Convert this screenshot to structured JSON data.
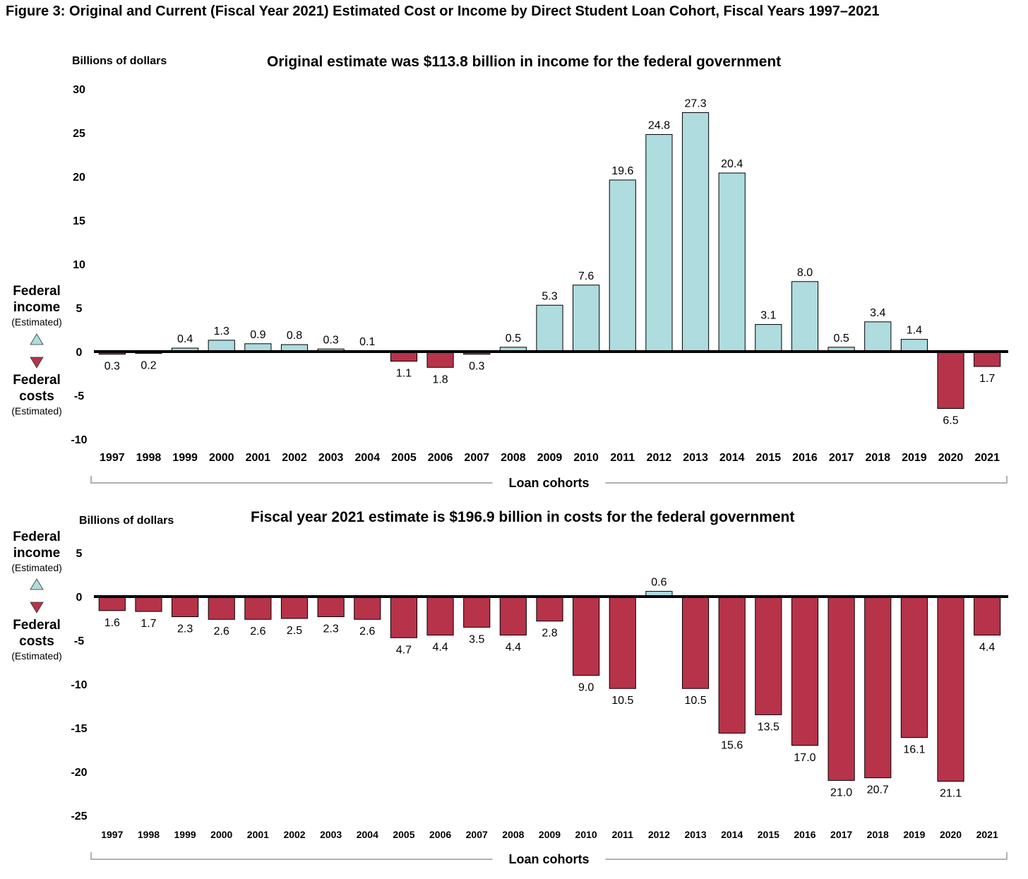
{
  "figure_title": "Figure 3: Original and Current (Fiscal Year 2021) Estimated Cost or Income by Direct Student Loan Cohort, Fiscal Years 1997–2021",
  "legend": {
    "income_label_line1": "Federal",
    "income_label_line2": "income",
    "income_note": "(Estimated)",
    "costs_label_line1": "Federal",
    "costs_label_line2": "costs",
    "costs_note": "(Estimated)",
    "income_color": "#aedcdf",
    "costs_color": "#b7334a",
    "income_icon": "triangle-up-icon",
    "costs_icon": "triangle-down-icon"
  },
  "chart_data": [
    {
      "type": "bar",
      "title": "Original estimate was $113.8 billion in income for the federal government",
      "ylabel": "Billions of dollars",
      "xlabel": "Loan cohorts",
      "ylim": [
        -10,
        30
      ],
      "yticks": [
        30,
        25,
        20,
        15,
        10,
        5,
        0,
        -5,
        -10
      ],
      "grid": false,
      "categories": [
        "1997",
        "1998",
        "1999",
        "2000",
        "2001",
        "2002",
        "2003",
        "2004",
        "2005",
        "2006",
        "2007",
        "2008",
        "2009",
        "2010",
        "2011",
        "2012",
        "2013",
        "2014",
        "2015",
        "2016",
        "2017",
        "2018",
        "2019",
        "2020",
        "2021"
      ],
      "values": [
        -0.3,
        -0.2,
        0.4,
        1.3,
        0.9,
        0.8,
        0.3,
        0.1,
        -1.1,
        -1.8,
        -0.3,
        0.5,
        5.3,
        7.6,
        19.6,
        24.8,
        27.3,
        20.4,
        3.1,
        8.0,
        0.5,
        3.4,
        1.4,
        -6.5,
        -1.7
      ],
      "labels": [
        "0.3",
        "0.2",
        "0.4",
        "1.3",
        "0.9",
        "0.8",
        "0.3",
        "0.1",
        "1.1",
        "1.8",
        "0.3",
        "0.5",
        "5.3",
        "7.6",
        "19.6",
        "24.8",
        "27.3",
        "20.4",
        "3.1",
        "8.0",
        "0.5",
        "3.4",
        "1.4",
        "6.5",
        "1.7"
      ]
    },
    {
      "type": "bar",
      "title": "Fiscal year 2021 estimate is $196.9 billion in costs for the federal government",
      "ylabel": "Billions of dollars",
      "xlabel": "Loan cohorts",
      "ylim": [
        -25,
        5
      ],
      "yticks": [
        5,
        0,
        -5,
        -10,
        -15,
        -20,
        -25
      ],
      "grid": false,
      "categories": [
        "1997",
        "1998",
        "1999",
        "2000",
        "2001",
        "2002",
        "2003",
        "2004",
        "2005",
        "2006",
        "2007",
        "2008",
        "2009",
        "2010",
        "2011",
        "2012",
        "2013",
        "2014",
        "2015",
        "2016",
        "2017",
        "2018",
        "2019",
        "2020",
        "2021"
      ],
      "values": [
        -1.6,
        -1.7,
        -2.3,
        -2.6,
        -2.6,
        -2.5,
        -2.3,
        -2.6,
        -4.7,
        -4.4,
        -3.5,
        -4.4,
        -2.8,
        -9.0,
        -10.5,
        0.6,
        -10.5,
        -15.6,
        -13.5,
        -17.0,
        -21.0,
        -20.7,
        -16.1,
        -21.1,
        -4.4
      ],
      "labels": [
        "1.6",
        "1.7",
        "2.3",
        "2.6",
        "2.6",
        "2.5",
        "2.3",
        "2.6",
        "4.7",
        "4.4",
        "3.5",
        "4.4",
        "2.8",
        "9.0",
        "10.5",
        "0.6",
        "10.5",
        "15.6",
        "13.5",
        "17.0",
        "21.0",
        "20.7",
        "16.1",
        "21.1",
        "4.4"
      ]
    }
  ]
}
